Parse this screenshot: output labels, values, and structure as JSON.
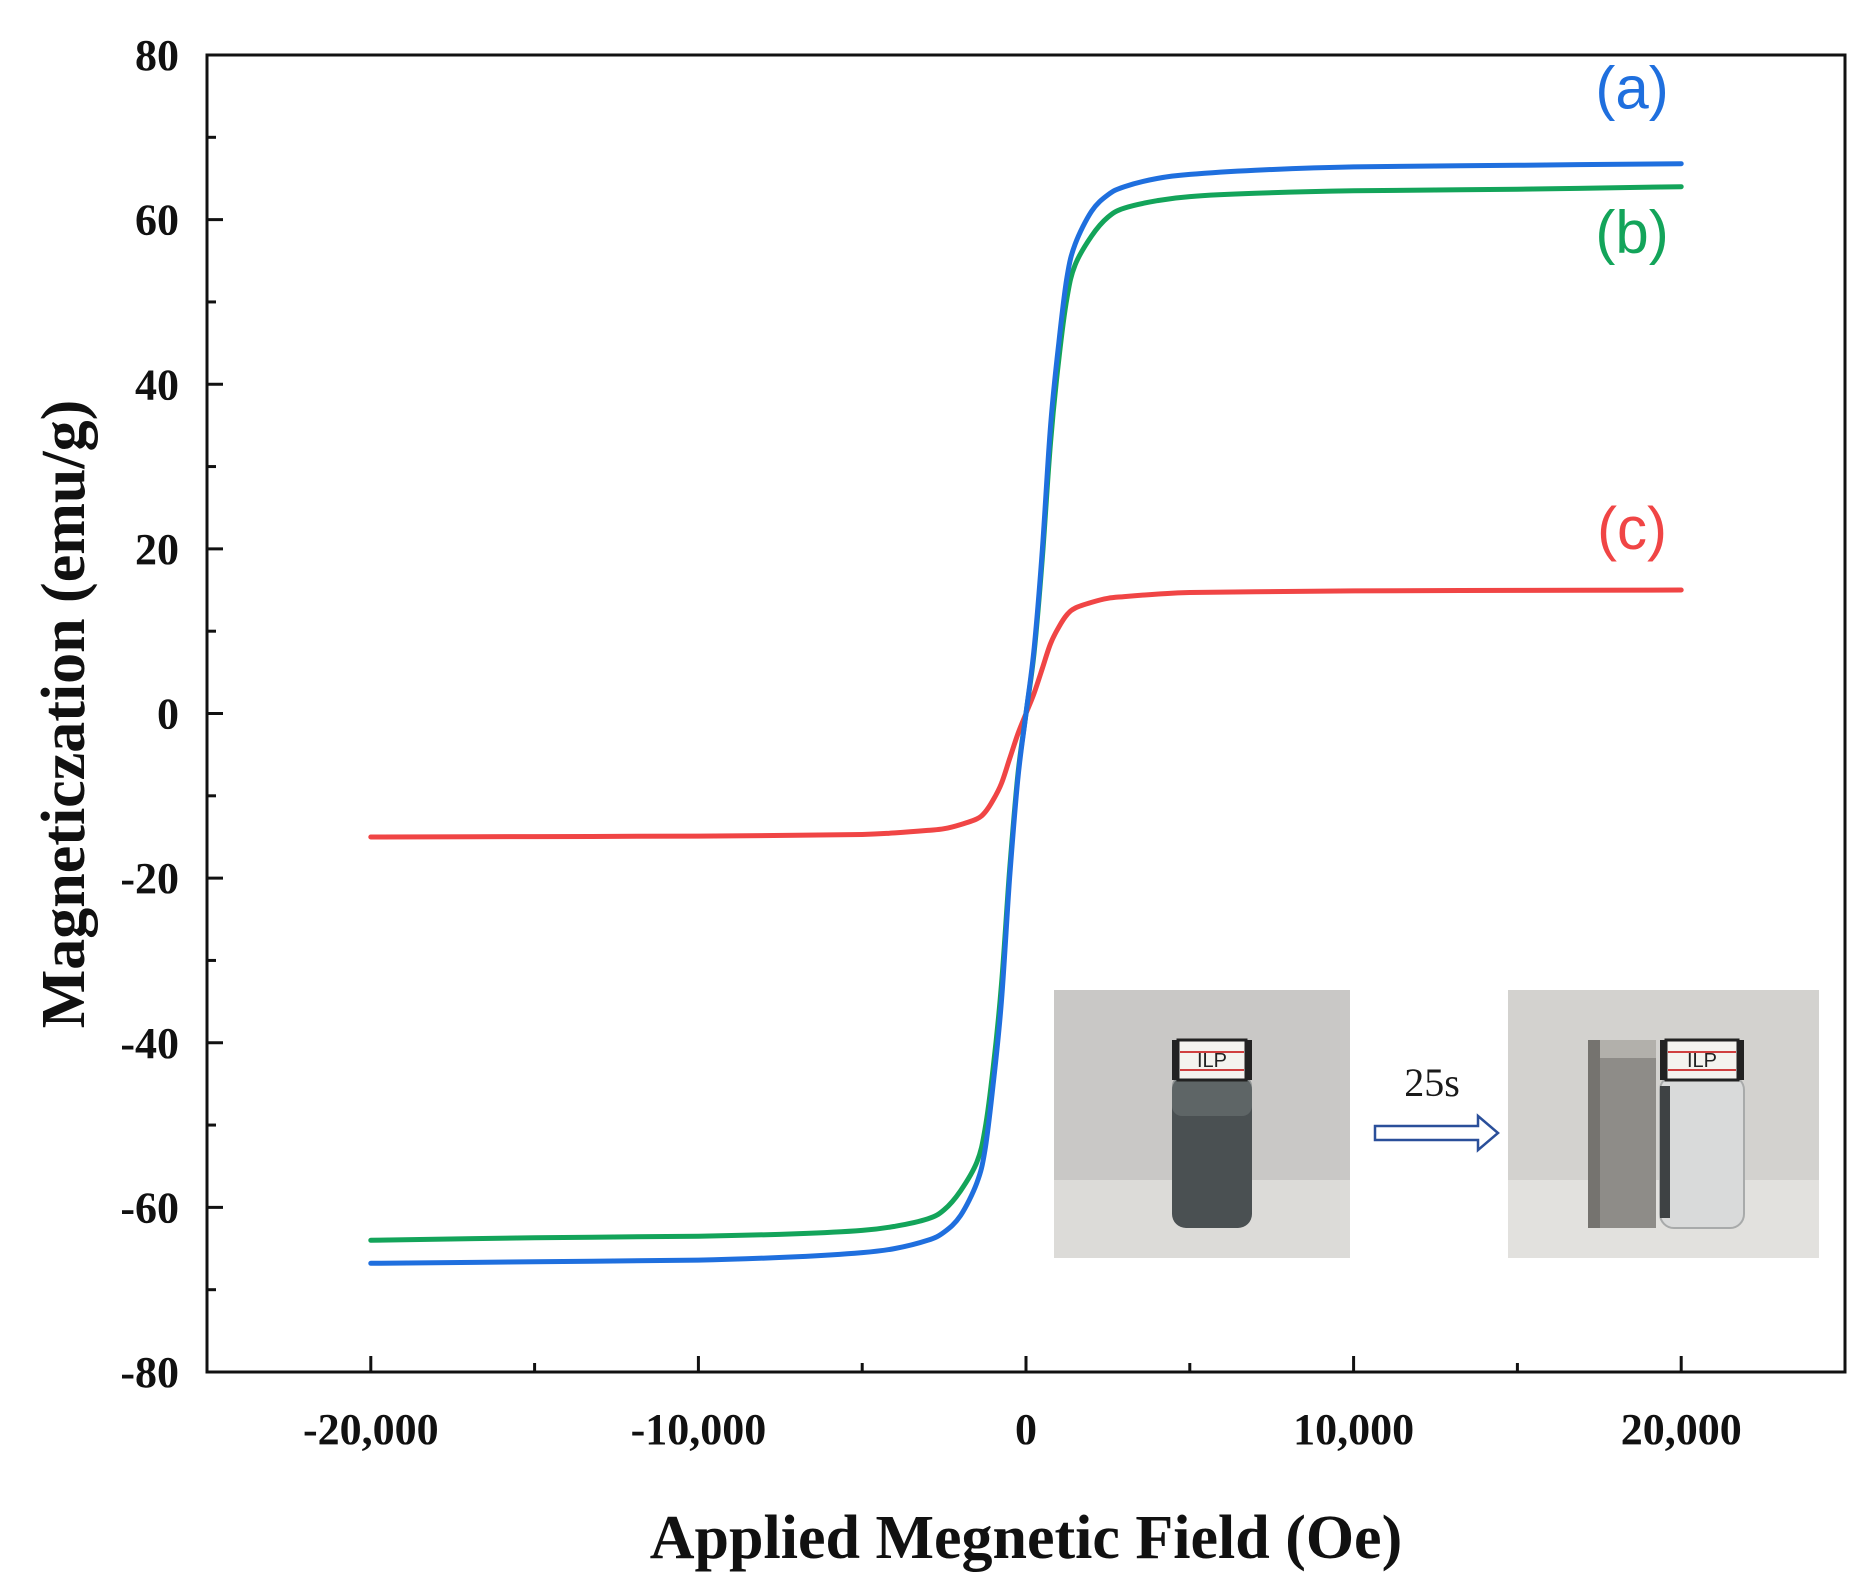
{
  "chart_data": {
    "type": "line",
    "title": "",
    "xlabel": "Applied Megnetic Field (Oe)",
    "ylabel": "Magneticzation (emu/g)",
    "xlim": [
      -25000,
      25000
    ],
    "ylim": [
      -80,
      80
    ],
    "x_ticks": [
      -20000,
      -10000,
      0,
      10000,
      20000
    ],
    "x_tick_labels": [
      "-20,000",
      "-10,000",
      "0",
      "10,000",
      "20,000"
    ],
    "y_ticks": [
      -80,
      -60,
      -40,
      -20,
      0,
      20,
      40,
      60,
      80
    ],
    "y_tick_labels": [
      "-80",
      "-60",
      "-40",
      "-20",
      "0",
      "20",
      "40",
      "60",
      "80"
    ],
    "x": [
      -20000,
      -15000,
      -10000,
      -7000,
      -5000,
      -4000,
      -3000,
      -2500,
      -2000,
      -1500,
      -1250,
      -1000,
      -750,
      -500,
      -250,
      0,
      250,
      500,
      750,
      1000,
      1250,
      1500,
      2000,
      2500,
      3000,
      4000,
      5000,
      7000,
      10000,
      15000,
      20000
    ],
    "series": [
      {
        "name": "(a)",
        "color": "#1f6fde",
        "values": [
          -66.8,
          -66.6,
          -66.4,
          -66.0,
          -65.5,
          -65.0,
          -64.0,
          -63.0,
          -61.0,
          -57.0,
          -53.0,
          -45.0,
          -35.0,
          -20.0,
          -8.0,
          0.0,
          8.0,
          20.0,
          35.0,
          45.0,
          53.0,
          57.0,
          61.0,
          63.0,
          64.0,
          65.0,
          65.5,
          66.0,
          66.4,
          66.6,
          66.8
        ]
      },
      {
        "name": "(b)",
        "color": "#13a45a",
        "values": [
          -64.0,
          -63.7,
          -63.5,
          -63.2,
          -62.8,
          -62.3,
          -61.4,
          -60.3,
          -58.0,
          -54.5,
          -50.5,
          -43.0,
          -33.0,
          -19.0,
          -7.5,
          0.0,
          7.5,
          19.0,
          33.0,
          43.0,
          50.5,
          54.5,
          58.0,
          60.3,
          61.4,
          62.3,
          62.8,
          63.2,
          63.5,
          63.7,
          64.0
        ]
      },
      {
        "name": "(c)",
        "color": "#f04545",
        "values": [
          -15.0,
          -14.95,
          -14.9,
          -14.8,
          -14.7,
          -14.5,
          -14.2,
          -14.0,
          -13.5,
          -12.8,
          -12.0,
          -10.5,
          -8.5,
          -5.5,
          -2.5,
          0.0,
          2.5,
          5.5,
          8.5,
          10.5,
          12.0,
          12.8,
          13.5,
          14.0,
          14.2,
          14.5,
          14.7,
          14.8,
          14.9,
          14.95,
          15.0
        ]
      }
    ],
    "annotations": [
      {
        "text": "(a)",
        "series": "(a)",
        "x": 18500,
        "y": 73.5,
        "color": "#1f6fde"
      },
      {
        "text": "(b)",
        "series": "(b)",
        "x": 18500,
        "y": 56,
        "color": "#13a45a"
      },
      {
        "text": "(c)",
        "series": "(c)",
        "x": 18500,
        "y": 20,
        "color": "#f04545"
      }
    ],
    "inset": {
      "arrow_label": "25s",
      "vial_label": "ILP"
    }
  }
}
